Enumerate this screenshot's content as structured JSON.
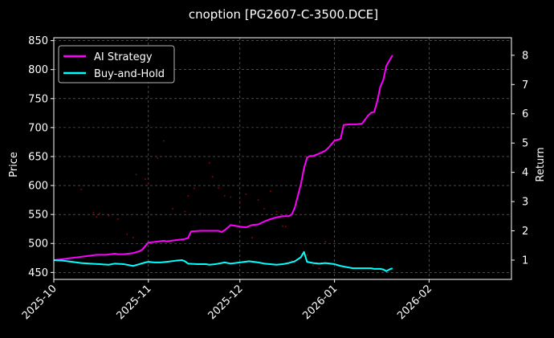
{
  "chart_data": {
    "type": "line",
    "title": "cnoption [PG2607-C-3500.DCE]",
    "ylabel_left": "Price",
    "ylabel_right": "Return",
    "x_ticks": [
      "2025-10",
      "2025-11",
      "2025-12",
      "2026-01",
      "2026-02"
    ],
    "x_tick_dates": [
      "2025-10-01",
      "2025-11-01",
      "2025-12-01",
      "2026-01-01",
      "2026-02-01"
    ],
    "xlim": [
      "2025-10-01",
      "2026-02-28"
    ],
    "y_left_ticks": [
      450,
      500,
      550,
      600,
      650,
      700,
      750,
      800,
      850
    ],
    "y_left_lim": [
      438,
      855
    ],
    "y_right_ticks": [
      1,
      2,
      3,
      4,
      5,
      6,
      7,
      8
    ],
    "y_right_lim": [
      0.34,
      8.6
    ],
    "grid": true,
    "legend_position": "top-left",
    "series": [
      {
        "name": "AI Strategy",
        "color": "#ff00ff",
        "axis": "right",
        "points": [
          [
            "2025-10-01",
            1.0
          ],
          [
            "2025-10-03",
            1.02
          ],
          [
            "2025-10-06",
            1.06
          ],
          [
            "2025-10-09",
            1.1
          ],
          [
            "2025-10-12",
            1.14
          ],
          [
            "2025-10-15",
            1.18
          ],
          [
            "2025-10-18",
            1.18
          ],
          [
            "2025-10-21",
            1.22
          ],
          [
            "2025-10-22",
            1.2
          ],
          [
            "2025-10-24",
            1.2
          ],
          [
            "2025-10-27",
            1.24
          ],
          [
            "2025-10-29",
            1.3
          ],
          [
            "2025-10-30",
            1.36
          ],
          [
            "2025-11-01",
            1.6
          ],
          [
            "2025-11-03",
            1.62
          ],
          [
            "2025-11-06",
            1.66
          ],
          [
            "2025-11-07",
            1.64
          ],
          [
            "2025-11-10",
            1.68
          ],
          [
            "2025-11-13",
            1.72
          ],
          [
            "2025-11-14",
            1.76
          ],
          [
            "2025-11-15",
            1.98
          ],
          [
            "2025-11-18",
            2.0
          ],
          [
            "2025-11-21",
            2.0
          ],
          [
            "2025-11-24",
            2.0
          ],
          [
            "2025-11-25",
            1.96
          ],
          [
            "2025-11-26",
            2.02
          ],
          [
            "2025-11-28",
            2.2
          ],
          [
            "2025-12-01",
            2.14
          ],
          [
            "2025-12-03",
            2.12
          ],
          [
            "2025-12-05",
            2.2
          ],
          [
            "2025-12-07",
            2.22
          ],
          [
            "2025-12-09",
            2.32
          ],
          [
            "2025-12-11",
            2.4
          ],
          [
            "2025-12-13",
            2.46
          ],
          [
            "2025-12-15",
            2.5
          ],
          [
            "2025-12-17",
            2.5
          ],
          [
            "2025-12-18",
            2.56
          ],
          [
            "2025-12-19",
            2.8
          ],
          [
            "2025-12-20",
            3.2
          ],
          [
            "2025-12-21",
            3.6
          ],
          [
            "2025-12-22",
            4.14
          ],
          [
            "2025-12-23",
            4.5
          ],
          [
            "2025-12-24",
            4.56
          ],
          [
            "2025-12-25",
            4.56
          ],
          [
            "2025-12-27",
            4.64
          ],
          [
            "2025-12-29",
            4.74
          ],
          [
            "2025-12-30",
            4.84
          ],
          [
            "2026-01-01",
            5.08
          ],
          [
            "2026-01-03",
            5.14
          ],
          [
            "2026-01-04",
            5.62
          ],
          [
            "2026-01-06",
            5.64
          ],
          [
            "2026-01-08",
            5.64
          ],
          [
            "2026-01-10",
            5.66
          ],
          [
            "2026-01-12",
            5.94
          ],
          [
            "2026-01-13",
            6.04
          ],
          [
            "2026-01-14",
            6.06
          ],
          [
            "2026-01-15",
            6.42
          ],
          [
            "2026-01-16",
            6.92
          ],
          [
            "2026-01-17",
            7.16
          ],
          [
            "2026-01-18",
            7.64
          ],
          [
            "2026-01-19",
            7.82
          ],
          [
            "2026-01-20",
            8.0
          ]
        ]
      },
      {
        "name": "Buy-and-Hold",
        "color": "#00ffff",
        "axis": "right",
        "points": [
          [
            "2025-10-01",
            1.0
          ],
          [
            "2025-10-04",
            0.98
          ],
          [
            "2025-10-07",
            0.94
          ],
          [
            "2025-10-10",
            0.9
          ],
          [
            "2025-10-13",
            0.88
          ],
          [
            "2025-10-16",
            0.86
          ],
          [
            "2025-10-19",
            0.84
          ],
          [
            "2025-10-21",
            0.88
          ],
          [
            "2025-10-24",
            0.86
          ],
          [
            "2025-10-26",
            0.82
          ],
          [
            "2025-10-27",
            0.8
          ],
          [
            "2025-10-29",
            0.86
          ],
          [
            "2025-10-31",
            0.92
          ],
          [
            "2025-11-01",
            0.94
          ],
          [
            "2025-11-03",
            0.92
          ],
          [
            "2025-11-05",
            0.92
          ],
          [
            "2025-11-07",
            0.94
          ],
          [
            "2025-11-10",
            0.98
          ],
          [
            "2025-11-12",
            1.0
          ],
          [
            "2025-11-13",
            0.96
          ],
          [
            "2025-11-14",
            0.88
          ],
          [
            "2025-11-17",
            0.86
          ],
          [
            "2025-11-20",
            0.86
          ],
          [
            "2025-11-21",
            0.84
          ],
          [
            "2025-11-23",
            0.86
          ],
          [
            "2025-11-24",
            0.88
          ],
          [
            "2025-11-26",
            0.92
          ],
          [
            "2025-11-28",
            0.88
          ],
          [
            "2025-12-01",
            0.92
          ],
          [
            "2025-12-04",
            0.96
          ],
          [
            "2025-12-07",
            0.92
          ],
          [
            "2025-12-09",
            0.88
          ],
          [
            "2025-12-11",
            0.86
          ],
          [
            "2025-12-13",
            0.84
          ],
          [
            "2025-12-15",
            0.86
          ],
          [
            "2025-12-17",
            0.9
          ],
          [
            "2025-12-19",
            0.96
          ],
          [
            "2025-12-21",
            1.1
          ],
          [
            "2025-12-22",
            1.28
          ],
          [
            "2025-12-23",
            0.94
          ],
          [
            "2025-12-25",
            0.9
          ],
          [
            "2025-12-27",
            0.88
          ],
          [
            "2025-12-29",
            0.9
          ],
          [
            "2026-01-01",
            0.86
          ],
          [
            "2026-01-03",
            0.8
          ],
          [
            "2026-01-05",
            0.76
          ],
          [
            "2026-01-07",
            0.72
          ],
          [
            "2026-01-09",
            0.72
          ],
          [
            "2026-01-11",
            0.72
          ],
          [
            "2026-01-13",
            0.72
          ],
          [
            "2026-01-14",
            0.7
          ],
          [
            "2026-01-16",
            0.7
          ],
          [
            "2026-01-17",
            0.68
          ],
          [
            "2026-01-18",
            0.62
          ],
          [
            "2026-01-19",
            0.68
          ],
          [
            "2026-01-20",
            0.72
          ]
        ]
      }
    ],
    "price_points": [
      [
        "2025-10-10",
        593
      ],
      [
        "2025-10-14",
        553
      ],
      [
        "2025-10-15",
        546
      ],
      [
        "2025-10-16",
        552
      ],
      [
        "2025-10-19",
        548
      ],
      [
        "2025-10-22",
        542
      ],
      [
        "2025-10-25",
        516
      ],
      [
        "2025-10-27",
        510
      ],
      [
        "2025-10-28",
        619
      ],
      [
        "2025-10-31",
        611
      ],
      [
        "2025-11-01",
        603
      ],
      [
        "2025-11-04",
        647
      ],
      [
        "2025-11-06",
        677
      ],
      [
        "2025-11-09",
        560
      ],
      [
        "2025-11-13",
        555
      ],
      [
        "2025-11-14",
        582
      ],
      [
        "2025-11-16",
        595
      ],
      [
        "2025-11-18",
        552
      ],
      [
        "2025-11-21",
        639
      ],
      [
        "2025-11-22",
        615
      ],
      [
        "2025-11-24",
        596
      ],
      [
        "2025-11-26",
        582
      ],
      [
        "2025-11-28",
        580
      ],
      [
        "2025-12-01",
        572
      ],
      [
        "2025-12-03",
        585
      ],
      [
        "2025-12-05",
        510
      ],
      [
        "2025-12-07",
        575
      ],
      [
        "2025-12-09",
        560
      ],
      [
        "2025-12-11",
        590
      ],
      [
        "2025-12-13",
        555
      ],
      [
        "2025-12-15",
        530
      ],
      [
        "2025-12-16",
        529
      ],
      [
        "2025-12-18",
        470
      ],
      [
        "2025-12-19",
        468
      ],
      [
        "2025-12-21",
        475
      ],
      [
        "2025-12-23",
        480
      ],
      [
        "2025-12-25",
        462
      ],
      [
        "2025-12-27",
        457
      ],
      [
        "2025-12-29",
        503
      ]
    ]
  }
}
